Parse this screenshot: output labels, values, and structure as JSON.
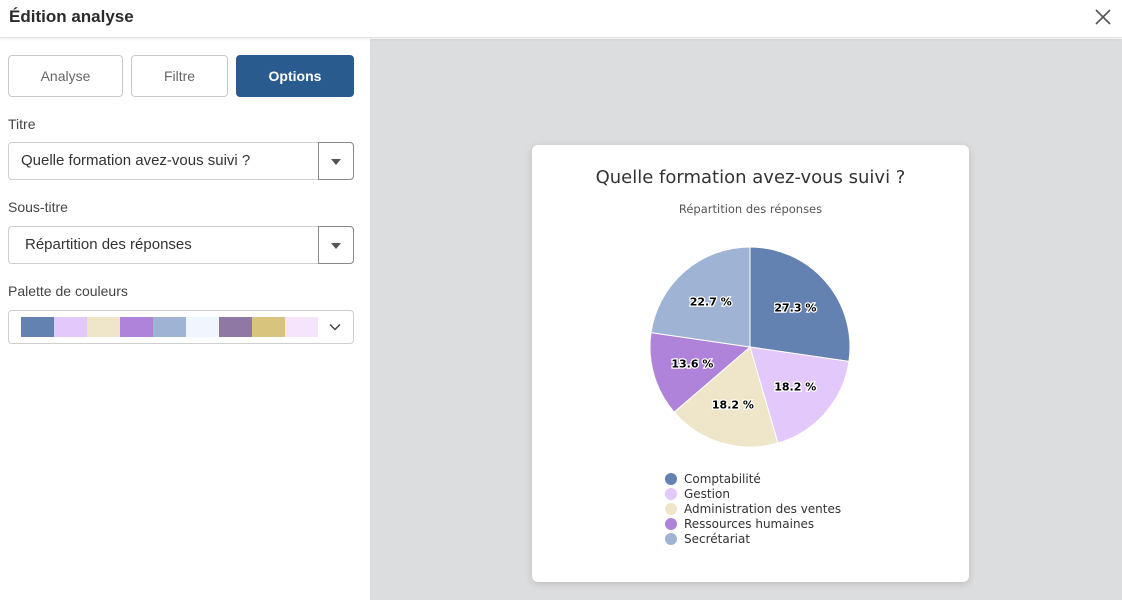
{
  "header": {
    "title": "Édition analyse"
  },
  "tabs": [
    {
      "label": "Analyse"
    },
    {
      "label": "Filtre"
    },
    {
      "label": "Options"
    }
  ],
  "fields": {
    "title_label": "Titre",
    "title_value": "Quelle formation avez-vous suivi ?",
    "subtitle_label": "Sous-titre",
    "subtitle_value": "Répartition des réponses",
    "palette_label": "Palette de couleurs"
  },
  "palette_colors": [
    "#6381b1",
    "#e3c8fc",
    "#efe6c9",
    "#b083db",
    "#9fb4d5",
    "#f0f6fd",
    "#8f78a3",
    "#d9c47e",
    "#f6e4fd"
  ],
  "chart_data": {
    "type": "pie",
    "title": "Quelle formation avez-vous suivi ?",
    "subtitle": "Répartition des réponses",
    "categories": [
      "Comptabilité",
      "Gestion",
      "Administration des ventes",
      "Ressources humaines",
      "Secrétariat"
    ],
    "values": [
      27.3,
      18.2,
      18.2,
      13.6,
      22.7
    ],
    "value_labels": [
      "27.3 %",
      "18.2 %",
      "18.2 %",
      "13.6 %",
      "22.7 %"
    ],
    "colors": [
      "#6381b1",
      "#e3c8fc",
      "#efe6c9",
      "#b083db",
      "#9fb4d5"
    ],
    "legend_position": "bottom"
  }
}
